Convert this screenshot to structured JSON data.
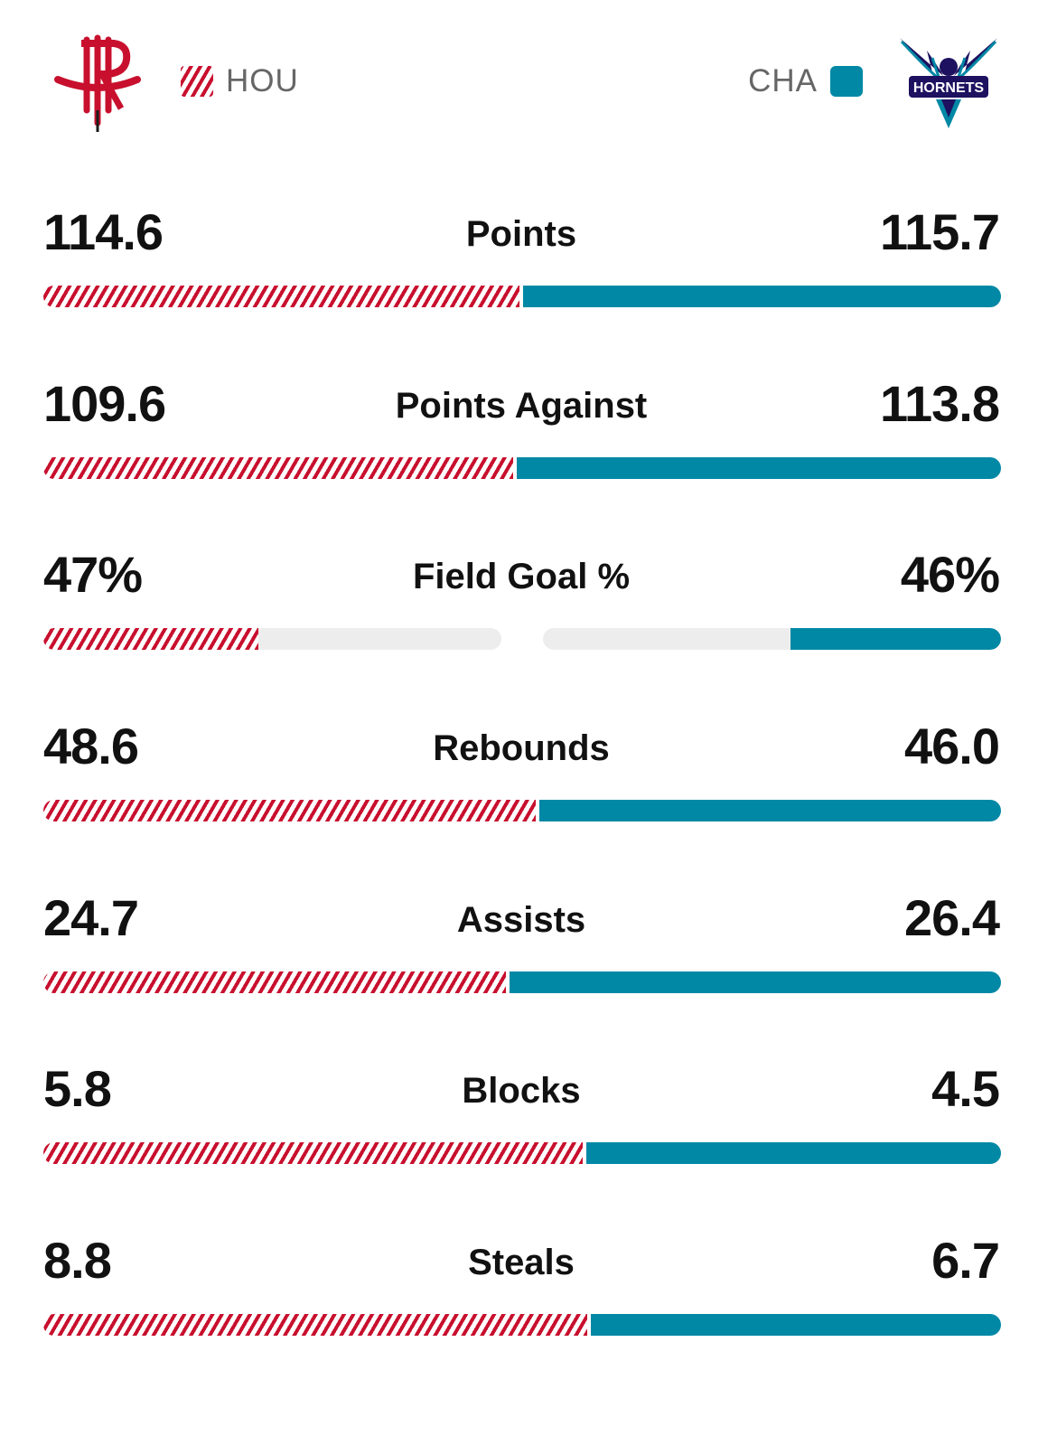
{
  "teams": {
    "home": {
      "abbr": "HOU",
      "color": "#c8102e",
      "logo_text": "R",
      "logo_icon": "rockets-logo-icon"
    },
    "away": {
      "abbr": "CHA",
      "color": "#0088a5",
      "logo_text": "HORNETS",
      "logo_icon": "hornets-logo-icon"
    }
  },
  "chart_data": {
    "type": "bar",
    "orientation": "horizontal-comparison",
    "series": [
      {
        "name": "HOU",
        "color": "#c8102e",
        "pattern": "striped"
      },
      {
        "name": "CHA",
        "color": "#0088a5",
        "pattern": "solid"
      }
    ],
    "stats": [
      {
        "label": "Points",
        "hou": "114.6",
        "cha": "115.7",
        "hou_value": 114.6,
        "cha_value": 115.7,
        "mode": "share"
      },
      {
        "label": "Points Against",
        "hou": "109.6",
        "cha": "113.8",
        "hou_value": 109.6,
        "cha_value": 113.8,
        "mode": "share"
      },
      {
        "label": "Field Goal %",
        "hou": "47%",
        "cha": "46%",
        "hou_value": 47,
        "cha_value": 46,
        "mode": "percent"
      },
      {
        "label": "Rebounds",
        "hou": "48.6",
        "cha": "46.0",
        "hou_value": 48.6,
        "cha_value": 46.0,
        "mode": "share"
      },
      {
        "label": "Assists",
        "hou": "24.7",
        "cha": "26.4",
        "hou_value": 24.7,
        "cha_value": 26.4,
        "mode": "share"
      },
      {
        "label": "Blocks",
        "hou": "5.8",
        "cha": "4.5",
        "hou_value": 5.8,
        "cha_value": 4.5,
        "mode": "share"
      },
      {
        "label": "Steals",
        "hou": "8.8",
        "cha": "6.7",
        "hou_value": 8.8,
        "cha_value": 6.7,
        "mode": "share"
      }
    ]
  }
}
